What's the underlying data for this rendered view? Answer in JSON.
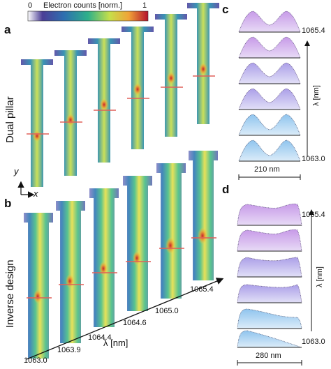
{
  "panel_labels": {
    "a": "a",
    "b": "b",
    "c": "c",
    "d": "d"
  },
  "colorbar": {
    "min": "0",
    "max": "1",
    "label": "Electron counts [norm.]"
  },
  "rows": {
    "top": "Dual pillar",
    "bottom": "Inverse design"
  },
  "axes": {
    "y": "y",
    "x": "x"
  },
  "panel_b": {
    "wavelengths": [
      "1063.0",
      "1063.9",
      "1064.4",
      "1064.6",
      "1065.0",
      "1065.4"
    ],
    "axis_label": "λ [nm]"
  },
  "panel_c": {
    "top_value": "1065.4",
    "bottom_value": "1063.0",
    "axis_label": "λ [nm]",
    "scale_bar": "210 nm"
  },
  "panel_d": {
    "top_value": "1065.4",
    "bottom_value": "1063.0",
    "axis_label": "λ [nm]",
    "scale_bar": "280 nm"
  },
  "colors": {
    "top_profile": "#c79ae8",
    "bottom_profile": "#8fc4ee",
    "marker": "#e0605a"
  }
}
